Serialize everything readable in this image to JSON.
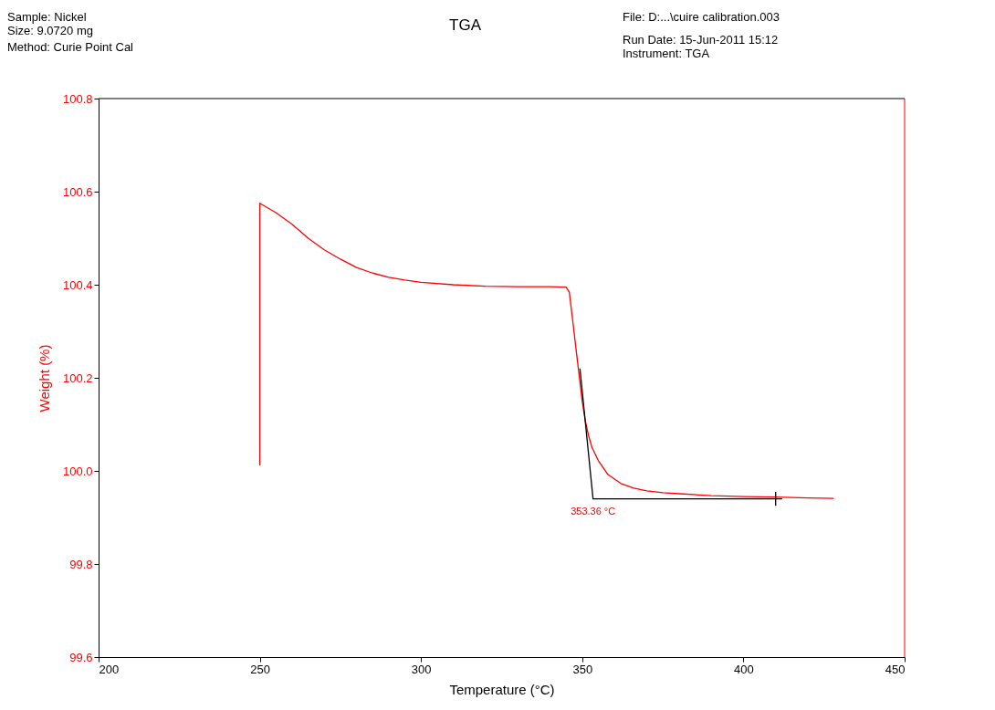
{
  "chart_data": {
    "type": "line",
    "title": "TGA",
    "xlabel": "Temperature (°C)",
    "ylabel": "Weight (%)",
    "annotations": [
      "Sample: Nickel",
      "Size:  9.0720 mg",
      "Method: Curie Point Cal",
      "File: D:...\\cuire calibration.003",
      "Run Date: 15-Jun-2011 15:12",
      "Instrument: TGA",
      {
        "text": "353.36 °C",
        "x": 353.36,
        "y": 99.94
      }
    ],
    "xlim": [
      200,
      450
    ],
    "xticks": [
      200,
      250,
      300,
      350,
      400,
      450
    ],
    "ylim": [
      99.6,
      100.8
    ],
    "yticks": [
      99.6,
      99.8,
      {
        "value": 100,
        "label": "100.0"
      },
      100.2,
      100.4,
      100.6,
      100.8
    ],
    "grid": false,
    "marker": "none",
    "line_style": "solid",
    "series": [
      {
        "color": "#ff0000",
        "x": [
          250,
          250,
          255,
          260,
          265,
          270,
          275,
          280,
          285,
          290,
          295,
          300,
          310,
          320,
          330,
          340,
          345,
          346,
          347,
          348,
          349,
          350,
          351,
          352,
          353,
          355,
          358,
          362,
          366,
          370,
          375,
          380,
          390,
          400,
          410,
          420,
          428
        ],
        "values": [
          100.012,
          100.575,
          100.555,
          100.53,
          100.5,
          100.475,
          100.455,
          100.437,
          100.425,
          100.416,
          100.41,
          100.405,
          100.4,
          100.397,
          100.396,
          100.396,
          100.395,
          100.384,
          100.326,
          100.267,
          100.208,
          100.149,
          100.106,
          100.075,
          100.051,
          100.022,
          99.992,
          99.973,
          99.963,
          99.957,
          99.953,
          99.951,
          99.947,
          99.945,
          99.944,
          99.942,
          99.941
        ]
      },
      {
        "color": "#000000",
        "x": [
          349.3,
          353.36,
          412
        ],
        "values": [
          100.22,
          99.94,
          99.94
        ]
      },
      {
        "color": "#000000",
        "x": [
          410,
          410
        ],
        "values": [
          99.925,
          99.955
        ]
      }
    ]
  }
}
